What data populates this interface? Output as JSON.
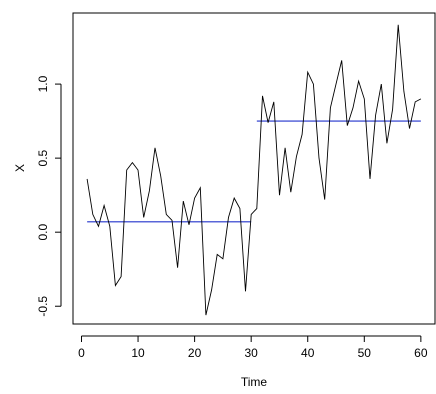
{
  "chart_data": {
    "type": "line",
    "title": "",
    "xlabel": "Time",
    "ylabel": "X",
    "xlim": [
      -1.5,
      62.5
    ],
    "ylim": [
      -0.62,
      1.48
    ],
    "x_ticks": [
      0,
      10,
      20,
      30,
      40,
      50,
      60
    ],
    "x_tick_labels": [
      "0",
      "10",
      "20",
      "30",
      "40",
      "50",
      "60"
    ],
    "y_ticks": [
      -0.5,
      0.0,
      0.5,
      1.0
    ],
    "y_tick_labels": [
      "-0.5",
      "0.0",
      "0.5",
      "1.0"
    ],
    "grid": false,
    "series": [
      {
        "color": "#000000",
        "x": [
          1,
          2,
          3,
          4,
          5,
          6,
          7,
          8,
          9,
          10,
          11,
          12,
          13,
          14,
          15,
          16,
          17,
          18,
          19,
          20,
          21,
          22,
          23,
          24,
          25,
          26,
          27,
          28,
          29,
          30,
          31,
          32,
          33,
          34,
          35,
          36,
          37,
          38,
          39,
          40,
          41,
          42,
          43,
          44,
          45,
          46,
          47,
          48,
          49,
          50,
          51,
          52,
          53,
          54,
          55,
          56,
          57,
          58,
          59,
          60
        ],
        "values": [
          0.36,
          0.12,
          0.04,
          0.18,
          0.04,
          -0.36,
          -0.3,
          0.42,
          0.47,
          0.42,
          0.1,
          0.28,
          0.57,
          0.38,
          0.12,
          0.08,
          -0.24,
          0.21,
          0.05,
          0.23,
          0.3,
          -0.56,
          -0.39,
          -0.15,
          -0.18,
          0.1,
          0.23,
          0.16,
          -0.4,
          0.12,
          0.16,
          0.92,
          0.74,
          0.88,
          0.25,
          0.57,
          0.27,
          0.51,
          0.66,
          1.08,
          1.0,
          0.5,
          0.22,
          0.84,
          1.0,
          1.16,
          0.72,
          0.84,
          1.02,
          0.9,
          0.36,
          0.79,
          1.0,
          0.6,
          0.83,
          1.4,
          0.95,
          0.7,
          0.88,
          0.9
        ]
      }
    ],
    "segments": [
      {
        "color": "#2233cc",
        "x0": 1,
        "x1": 30,
        "y": 0.07
      },
      {
        "color": "#2233cc",
        "x0": 31,
        "x1": 60,
        "y": 0.75
      }
    ]
  }
}
